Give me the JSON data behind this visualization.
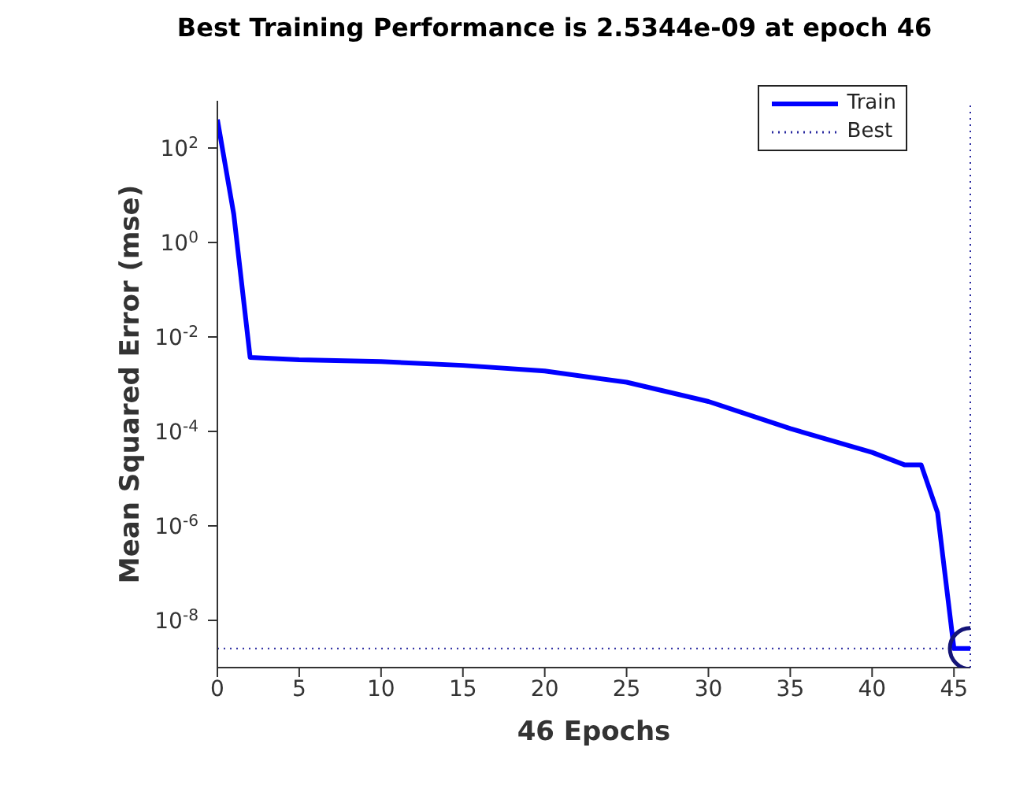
{
  "chart_data": {
    "type": "line",
    "title": "Best Training Performance is 2.5344e-09 at epoch 46",
    "xlabel": "46 Epochs",
    "ylabel": "Mean Squared Error  (mse)",
    "xlim": [
      0,
      46
    ],
    "xticks": [
      0,
      5,
      10,
      15,
      20,
      25,
      30,
      35,
      40,
      45
    ],
    "ylim": [
      1e-09,
      1000
    ],
    "yticks": [
      {
        "value": 100,
        "label": "10$^{2}$"
      },
      {
        "value": 1,
        "label": "10$^{0}$"
      },
      {
        "value": 0.01,
        "label": "10$^{-2}$"
      },
      {
        "value": 0.0001,
        "label": "10$^{-4}$"
      },
      {
        "value": 1e-06,
        "label": "10$^{-6}$"
      },
      {
        "value": 1e-08,
        "label": "10$^{-8}$"
      }
    ],
    "log": "y",
    "legend": "top right",
    "line_style": "solid",
    "marker": "none",
    "series": [
      {
        "name": "Train",
        "color": "#0000ff",
        "x": [
          0,
          1,
          2,
          5,
          10,
          15,
          20,
          25,
          30,
          35,
          40,
          42,
          43,
          44,
          45,
          46
        ],
        "values": [
          400,
          4,
          0.0037,
          0.0033,
          0.003,
          0.0025,
          0.0019,
          0.0011,
          0.00043,
          0.000115,
          3.6e-05,
          1.95e-05,
          1.95e-05,
          1.9e-06,
          2.5344e-09,
          2.5344e-09
        ]
      },
      {
        "type": "scatter",
        "color": "#141478",
        "marker": "circle",
        "x": [
          46
        ],
        "values": [
          2.5344e-09
        ]
      }
    ],
    "ref_lines": [
      {
        "axis": "y",
        "value": 2.5344e-09,
        "label": "Best",
        "color": "#2a2aa0",
        "line_style": "dotted"
      },
      {
        "axis": "x",
        "value": 46,
        "color": "#2a2aa0",
        "line_style": "dotted"
      }
    ]
  }
}
